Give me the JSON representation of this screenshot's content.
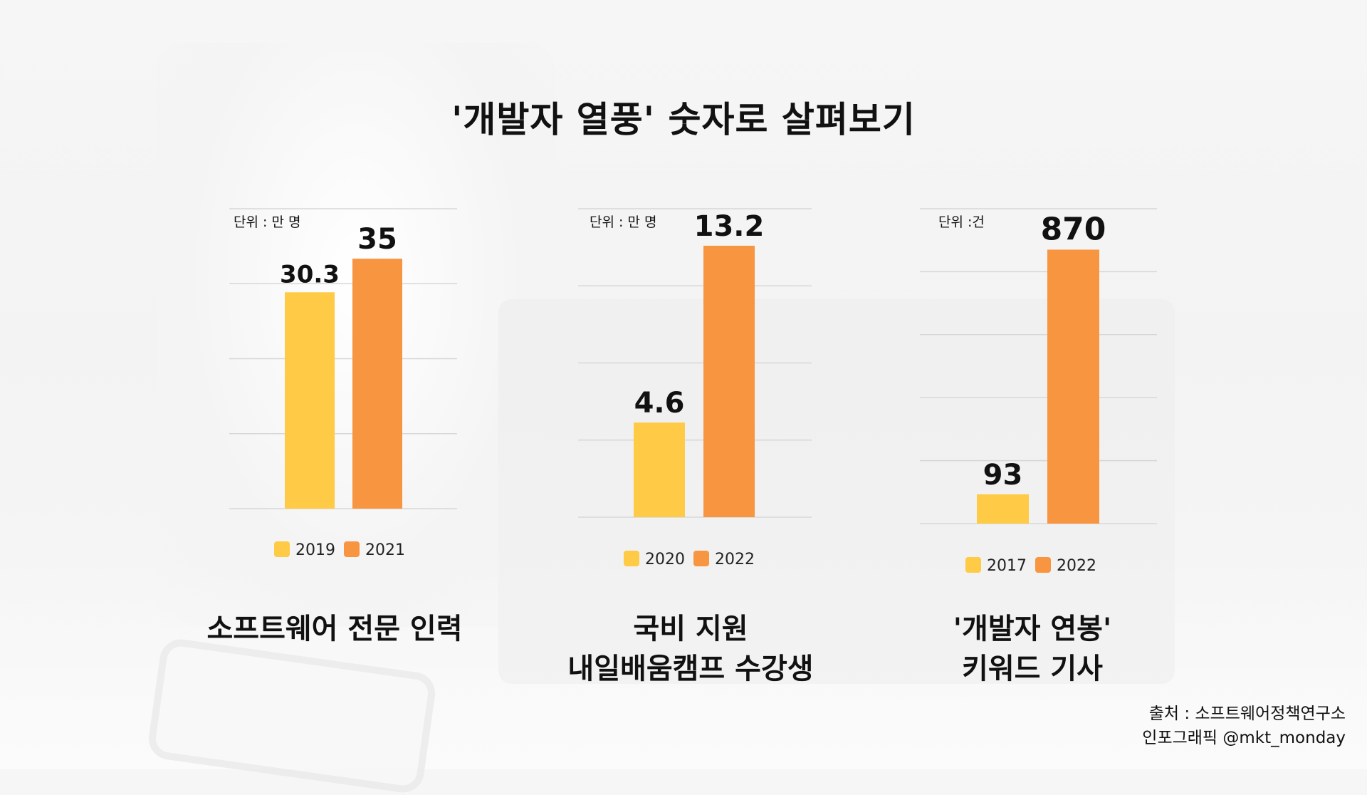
{
  "title": "'개발자 열풍' 숫자로 살펴보기",
  "source_line1": "출처 : 소프트웨어정책연구소",
  "source_line2": "인포그래픽 @mkt_monday",
  "colors": {
    "bar_early": "#FFCA45",
    "bar_late": "#F89540",
    "gridline": "#d7d7d7"
  },
  "chart_data": [
    {
      "type": "bar",
      "title": "소프트웨어 전문 인력",
      "unit_label": "단위 : 만 명",
      "categories": [
        "2019",
        "2021"
      ],
      "values": [
        30.3,
        35
      ],
      "value_labels": [
        "30.3",
        "35"
      ],
      "ylim": [
        0,
        42
      ],
      "grid_lines": 5,
      "grid": true,
      "legend_position": "bottom"
    },
    {
      "type": "bar",
      "title": "국비 지원\n내일배움캠프 수강생",
      "unit_label": "단위 : 만 명",
      "categories": [
        "2020",
        "2022"
      ],
      "values": [
        4.6,
        13.2
      ],
      "value_labels": [
        "4.6",
        "13.2"
      ],
      "ylim": [
        0,
        15
      ],
      "grid_lines": 5,
      "grid": true,
      "legend_position": "bottom"
    },
    {
      "type": "bar",
      "title": "'개발자 연봉'\n키워드 기사",
      "unit_label": "단위 :건",
      "categories": [
        "2017",
        "2022"
      ],
      "values": [
        93,
        870
      ],
      "value_labels": [
        "93",
        "870"
      ],
      "ylim": [
        0,
        1000
      ],
      "grid_lines": 6,
      "grid": true,
      "legend_position": "bottom"
    }
  ]
}
